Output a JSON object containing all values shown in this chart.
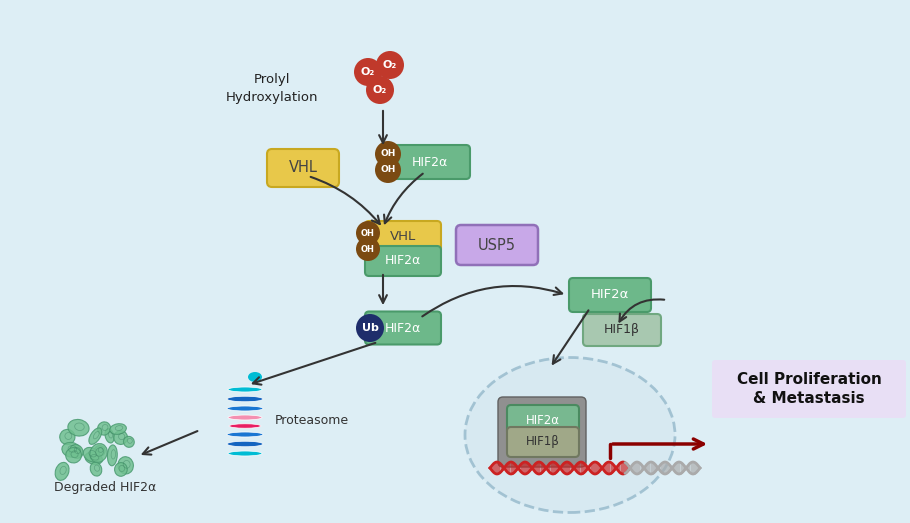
{
  "bg_color": "#f0f7fa",
  "cell_arc_color": "#b8d4e0",
  "cell_fill": "#ddeef5",
  "vhl_color": "#e8c84a",
  "vhl_border": "#c8a820",
  "hif2a_green": "#6db88a",
  "hif2a_green_border": "#4a9a6a",
  "oh_color": "#7b4a12",
  "ub_color": "#1e2d6b",
  "o2_color": "#c0392b",
  "usp5_fill": "#c8a8e8",
  "usp5_border": "#9070b8",
  "hif1b_fill": "#a8c8b0",
  "hif1b_border": "#70a880",
  "nuc_hif2a_fill": "#78b890",
  "nuc_hif2a_border": "#4a8a60",
  "nuc_hif1b_fill": "#a0a888",
  "nuc_hif1b_border": "#707860",
  "nuc_back_fill": "#909090",
  "nuc_back_border": "#606060",
  "cell_prolif_bg": "#e8dff5",
  "dark_red": "#8b0000",
  "arrow_color": "#333333",
  "dna_red": "#cc2222",
  "dna_gray": "#aaaaaa",
  "proteasome_colors": [
    "#00bcd4",
    "#1565c0",
    "#1976d2",
    "#e91e63",
    "#f48fb1",
    "#1565c0",
    "#1976d2",
    "#00bcd4"
  ],
  "blob_fill": "#70c090",
  "blob_border": "#4a9a70",
  "prolyl_text": "Prolyl\nHydroxylation",
  "vhl_text": "VHL",
  "hif2a_text": "HIF2α",
  "hif1b_text": "HIF1β",
  "usp5_text": "USP5",
  "ub_text": "Ub",
  "oh_text": "OH",
  "o2_text": "O₂",
  "proteasome_text": "Proteasome",
  "degraded_text": "Degraded HIF2α",
  "cell_prolif_text": "Cell Proliferation\n& Metastasis",
  "fig_width": 9.1,
  "fig_height": 5.23,
  "dpi": 100
}
